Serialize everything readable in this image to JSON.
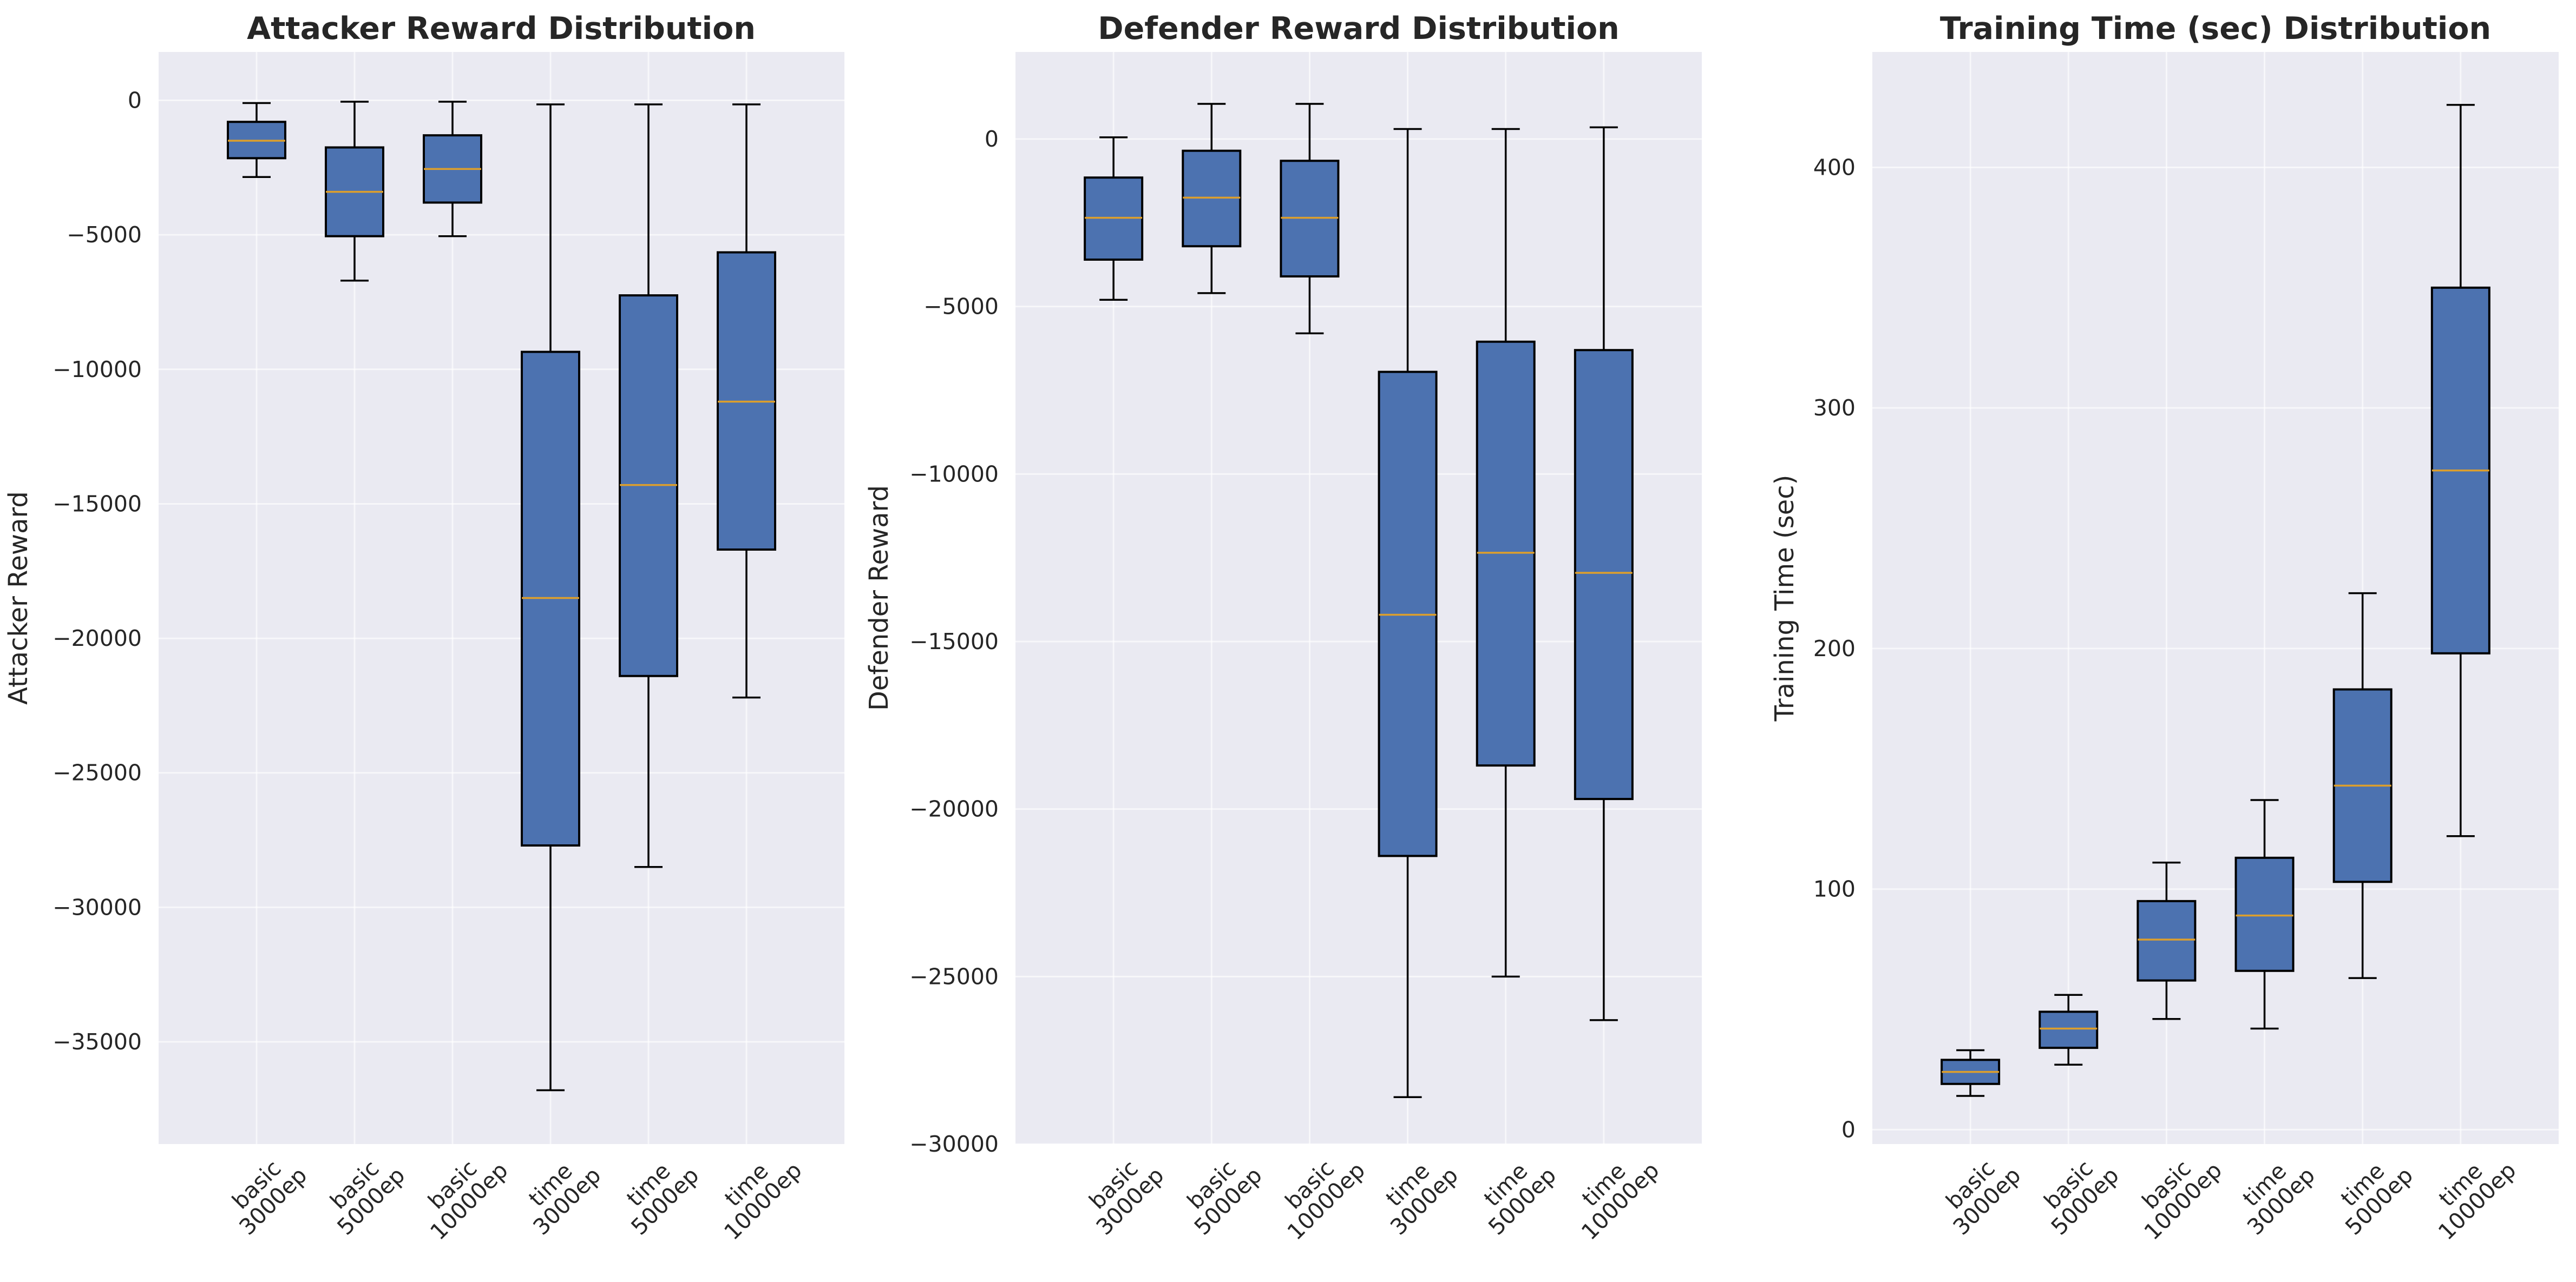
{
  "category_labels": [
    [
      "basic",
      "3000ep"
    ],
    [
      "basic",
      "5000ep"
    ],
    [
      "basic",
      "10000ep"
    ],
    [
      "time",
      "3000ep"
    ],
    [
      "time",
      "5000ep"
    ],
    [
      "time",
      "10000ep"
    ]
  ],
  "colors": {
    "box_fill": "#4c72b0",
    "median": "#dd9f2c",
    "plot_background": "#eaeaf2",
    "grid": "#ffffff",
    "edge": "#000000"
  },
  "chart_data": [
    {
      "type": "box",
      "title": "Attacker Reward Distribution",
      "xlabel": "",
      "ylabel": "Attacker Reward",
      "ylim": [
        -38800,
        1800
      ],
      "yticks": [
        0,
        -5000,
        -10000,
        -15000,
        -20000,
        -25000,
        -30000,
        -35000
      ],
      "ytick_labels": [
        "0",
        "−5000",
        "−10000",
        "−15000",
        "−20000",
        "−25000",
        "−30000",
        "−35000"
      ],
      "grid": true,
      "categories": [
        "basic 3000ep",
        "basic 5000ep",
        "basic 10000ep",
        "time 3000ep",
        "time 5000ep",
        "time 10000ep"
      ],
      "boxes": [
        {
          "whisker_low": -2850,
          "q1": -2150,
          "median": -1500,
          "q3": -800,
          "whisker_high": -100
        },
        {
          "whisker_low": -6700,
          "q1": -5050,
          "median": -3400,
          "q3": -1750,
          "whisker_high": -50
        },
        {
          "whisker_low": -5050,
          "q1": -3800,
          "median": -2550,
          "q3": -1300,
          "whisker_high": -50
        },
        {
          "whisker_low": -36800,
          "q1": -27700,
          "median": -18500,
          "q3": -9350,
          "whisker_high": -150
        },
        {
          "whisker_low": -28500,
          "q1": -21400,
          "median": -14300,
          "q3": -7250,
          "whisker_high": -150
        },
        {
          "whisker_low": -22200,
          "q1": -16700,
          "median": -11200,
          "q3": -5650,
          "whisker_high": -150
        }
      ]
    },
    {
      "type": "box",
      "title": "Defender Reward Distribution",
      "xlabel": "",
      "ylabel": "Defender Reward",
      "ylim": [
        -30000,
        2600
      ],
      "yticks": [
        0,
        -5000,
        -10000,
        -15000,
        -20000,
        -25000,
        -30000
      ],
      "ytick_labels": [
        "0",
        "−5000",
        "−10000",
        "−15000",
        "−20000",
        "−25000",
        "−30000"
      ],
      "grid": true,
      "categories": [
        "basic 3000ep",
        "basic 5000ep",
        "basic 10000ep",
        "time 3000ep",
        "time 5000ep",
        "time 10000ep"
      ],
      "boxes": [
        {
          "whisker_low": -4800,
          "q1": -3600,
          "median": -2350,
          "q3": -1150,
          "whisker_high": 50
        },
        {
          "whisker_low": -4600,
          "q1": -3200,
          "median": -1750,
          "q3": -350,
          "whisker_high": 1050
        },
        {
          "whisker_low": -5800,
          "q1": -4100,
          "median": -2350,
          "q3": -650,
          "whisker_high": 1050
        },
        {
          "whisker_low": -28600,
          "q1": -21400,
          "median": -14200,
          "q3": -6950,
          "whisker_high": 300
        },
        {
          "whisker_low": -25000,
          "q1": -18700,
          "median": -12350,
          "q3": -6050,
          "whisker_high": 300
        },
        {
          "whisker_low": -26300,
          "q1": -19700,
          "median": -12950,
          "q3": -6300,
          "whisker_high": 350
        }
      ]
    },
    {
      "type": "box",
      "title": "Training Time (sec) Distribution",
      "xlabel": "",
      "ylabel": "Training Time (sec)",
      "ylim": [
        -6,
        448
      ],
      "yticks": [
        0,
        100,
        200,
        300,
        400
      ],
      "ytick_labels": [
        "0",
        "100",
        "200",
        "300",
        "400"
      ],
      "grid": true,
      "categories": [
        "basic 3000ep",
        "basic 5000ep",
        "basic 10000ep",
        "time 3000ep",
        "time 5000ep",
        "time 10000ep"
      ],
      "boxes": [
        {
          "whisker_low": 14,
          "q1": 19,
          "median": 24,
          "q3": 29,
          "whisker_high": 33
        },
        {
          "whisker_low": 27,
          "q1": 34,
          "median": 42,
          "q3": 49,
          "whisker_high": 56
        },
        {
          "whisker_low": 46,
          "q1": 62,
          "median": 79,
          "q3": 95,
          "whisker_high": 111
        },
        {
          "whisker_low": 42,
          "q1": 66,
          "median": 89,
          "q3": 113,
          "whisker_high": 137
        },
        {
          "whisker_low": 63,
          "q1": 103,
          "median": 143,
          "q3": 183,
          "whisker_high": 223
        },
        {
          "whisker_low": 122,
          "q1": 198,
          "median": 274,
          "q3": 350,
          "whisker_high": 426
        }
      ]
    }
  ]
}
